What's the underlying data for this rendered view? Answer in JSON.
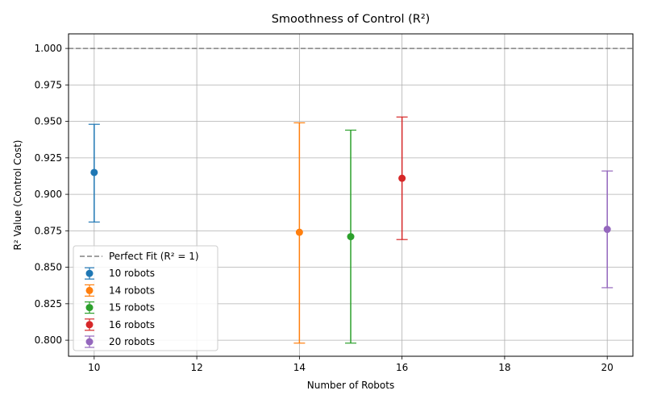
{
  "chart_data": {
    "type": "scatter",
    "title": "Smoothness of Control (R²)",
    "xlabel": "Number of Robots",
    "ylabel": "R² Value (Control Cost)",
    "xlim": [
      9.5,
      20.5
    ],
    "ylim": [
      0.789,
      1.01
    ],
    "xticks": [
      10,
      12,
      14,
      16,
      18,
      20
    ],
    "xtick_labels": [
      "10",
      "12",
      "14",
      "16",
      "18",
      "20"
    ],
    "yticks": [
      0.8,
      0.825,
      0.85,
      0.875,
      0.9,
      0.925,
      0.95,
      0.975,
      1.0
    ],
    "ytick_labels": [
      "0.800",
      "0.825",
      "0.850",
      "0.875",
      "0.900",
      "0.925",
      "0.950",
      "0.975",
      "1.000"
    ],
    "grid": true,
    "legend_position": "lower-left",
    "reference_line": {
      "label": "Perfect Fit (R² = 1)",
      "y": 1.0,
      "color": "#808080",
      "style": "dashed"
    },
    "series": [
      {
        "name": "10 robots",
        "x": 10,
        "y": 0.915,
        "err_low": 0.881,
        "err_high": 0.948,
        "color": "#1f77b4"
      },
      {
        "name": "14 robots",
        "x": 14,
        "y": 0.874,
        "err_low": 0.798,
        "err_high": 0.949,
        "color": "#ff7f0e"
      },
      {
        "name": "15 robots",
        "x": 15,
        "y": 0.871,
        "err_low": 0.798,
        "err_high": 0.944,
        "color": "#2ca02c"
      },
      {
        "name": "16 robots",
        "x": 16,
        "y": 0.911,
        "err_low": 0.869,
        "err_high": 0.953,
        "color": "#d62728"
      },
      {
        "name": "20 robots",
        "x": 20,
        "y": 0.876,
        "err_low": 0.836,
        "err_high": 0.916,
        "color": "#9467bd"
      }
    ]
  }
}
